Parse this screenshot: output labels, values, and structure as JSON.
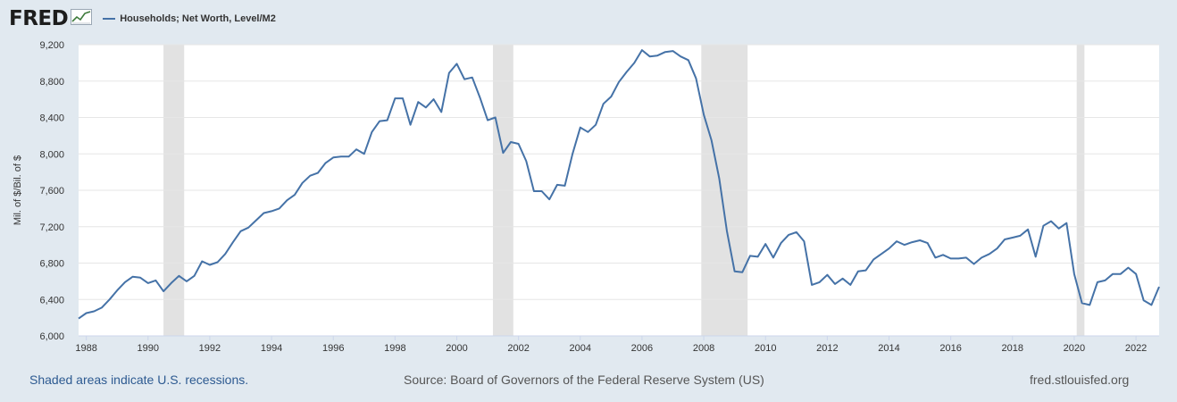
{
  "brand": {
    "logo_text": "FRED"
  },
  "footer": {
    "recessions_note": "Shaded areas indicate U.S. recessions.",
    "source": "Source: Board of Governors of the Federal Reserve System (US)",
    "site": "fred.stlouisfed.org"
  },
  "colors": {
    "line": "#4572a7",
    "recession": "#e2e2e2",
    "background": "#e1e9f0",
    "plot_bg": "#ffffff",
    "grid": "#e6e6e6"
  },
  "chart_data": {
    "type": "line",
    "title": "",
    "xlabel": "",
    "ylabel": "Mil. of $/Bil. of $",
    "xlim": [
      1987.75,
      2022.75
    ],
    "ylim": [
      6000,
      9200
    ],
    "y_ticks": [
      6000,
      6400,
      6800,
      7200,
      7600,
      8000,
      8400,
      8800,
      9200
    ],
    "y_tick_labels": [
      "6,000",
      "6,400",
      "6,800",
      "7,200",
      "7,600",
      "8,000",
      "8,400",
      "8,800",
      "9,200"
    ],
    "x_ticks": [
      1988,
      1990,
      1992,
      1994,
      1996,
      1998,
      2000,
      2002,
      2004,
      2006,
      2008,
      2010,
      2012,
      2014,
      2016,
      2018,
      2020,
      2022
    ],
    "x_tick_labels": [
      "1988",
      "1990",
      "1992",
      "1994",
      "1996",
      "1998",
      "2000",
      "2002",
      "2004",
      "2006",
      "2008",
      "2010",
      "2012",
      "2014",
      "2016",
      "2018",
      "2020",
      "2022"
    ],
    "grid": "horizontal",
    "legend_position": "top-left",
    "recessions": [
      [
        1990.5,
        1991.17
      ],
      [
        2001.17,
        2001.83
      ],
      [
        2007.92,
        2009.42
      ],
      [
        2020.08,
        2020.33
      ]
    ],
    "series": [
      {
        "name": "Households; Net Worth, Level/M2",
        "x": [
          1987.75,
          1988.0,
          1988.25,
          1988.5,
          1988.75,
          1989.0,
          1989.25,
          1989.5,
          1989.75,
          1990.0,
          1990.25,
          1990.5,
          1990.75,
          1991.0,
          1991.25,
          1991.5,
          1991.75,
          1992.0,
          1992.25,
          1992.5,
          1992.75,
          1993.0,
          1993.25,
          1993.5,
          1993.75,
          1994.0,
          1994.25,
          1994.5,
          1994.75,
          1995.0,
          1995.25,
          1995.5,
          1995.75,
          1996.0,
          1996.25,
          1996.5,
          1996.75,
          1997.0,
          1997.25,
          1997.5,
          1997.75,
          1998.0,
          1998.25,
          1998.5,
          1998.75,
          1999.0,
          1999.25,
          1999.5,
          1999.75,
          2000.0,
          2000.25,
          2000.5,
          2000.75,
          2001.0,
          2001.25,
          2001.5,
          2001.75,
          2002.0,
          2002.25,
          2002.5,
          2002.75,
          2003.0,
          2003.25,
          2003.5,
          2003.75,
          2004.0,
          2004.25,
          2004.5,
          2004.75,
          2005.0,
          2005.25,
          2005.5,
          2005.75,
          2006.0,
          2006.25,
          2006.5,
          2006.75,
          2007.0,
          2007.25,
          2007.5,
          2007.75,
          2008.0,
          2008.25,
          2008.5,
          2008.75,
          2009.0,
          2009.25,
          2009.5,
          2009.75,
          2010.0,
          2010.25,
          2010.5,
          2010.75,
          2011.0,
          2011.25,
          2011.5,
          2011.75,
          2012.0,
          2012.25,
          2012.5,
          2012.75,
          2013.0,
          2013.25,
          2013.5,
          2013.75,
          2014.0,
          2014.25,
          2014.5,
          2014.75,
          2015.0,
          2015.25,
          2015.5,
          2015.75,
          2016.0,
          2016.25,
          2016.5,
          2016.75,
          2017.0,
          2017.25,
          2017.5,
          2017.75,
          2018.0,
          2018.25,
          2018.5,
          2018.75,
          2019.0,
          2019.25,
          2019.5,
          2019.75,
          2020.0,
          2020.25,
          2020.5,
          2020.75,
          2021.0,
          2021.25,
          2021.5,
          2021.75,
          2022.0,
          2022.25,
          2022.5,
          2022.75
        ],
        "values": [
          6190,
          6250,
          6270,
          6310,
          6400,
          6500,
          6590,
          6650,
          6640,
          6580,
          6610,
          6490,
          6580,
          6660,
          6600,
          6660,
          6820,
          6780,
          6810,
          6900,
          7030,
          7150,
          7190,
          7270,
          7350,
          7370,
          7400,
          7490,
          7550,
          7680,
          7760,
          7790,
          7900,
          7960,
          7970,
          7970,
          8050,
          8000,
          8240,
          8360,
          8370,
          8610,
          8610,
          8320,
          8570,
          8510,
          8600,
          8460,
          8890,
          8990,
          8820,
          8840,
          8620,
          8370,
          8400,
          8010,
          8130,
          8110,
          7920,
          7590,
          7590,
          7500,
          7660,
          7650,
          8000,
          8290,
          8240,
          8320,
          8550,
          8630,
          8790,
          8900,
          9000,
          9140,
          9070,
          9080,
          9120,
          9130,
          9070,
          9030,
          8830,
          8430,
          8150,
          7730,
          7150,
          6710,
          6700,
          6880,
          6870,
          7010,
          6860,
          7020,
          7110,
          7140,
          7040,
          6560,
          6590,
          6670,
          6570,
          6630,
          6560,
          6710,
          6720,
          6840,
          6900,
          6960,
          7040,
          7000,
          7030,
          7050,
          7020,
          6860,
          6890,
          6850,
          6850,
          6860,
          6790,
          6860,
          6900,
          6960,
          7060,
          7080,
          7100,
          7170,
          6870,
          7210,
          7260,
          7180,
          7240,
          6680,
          6360,
          6340,
          6590,
          6610,
          6680,
          6680,
          6750,
          6680,
          6390,
          6340,
          6540
        ]
      }
    ]
  }
}
